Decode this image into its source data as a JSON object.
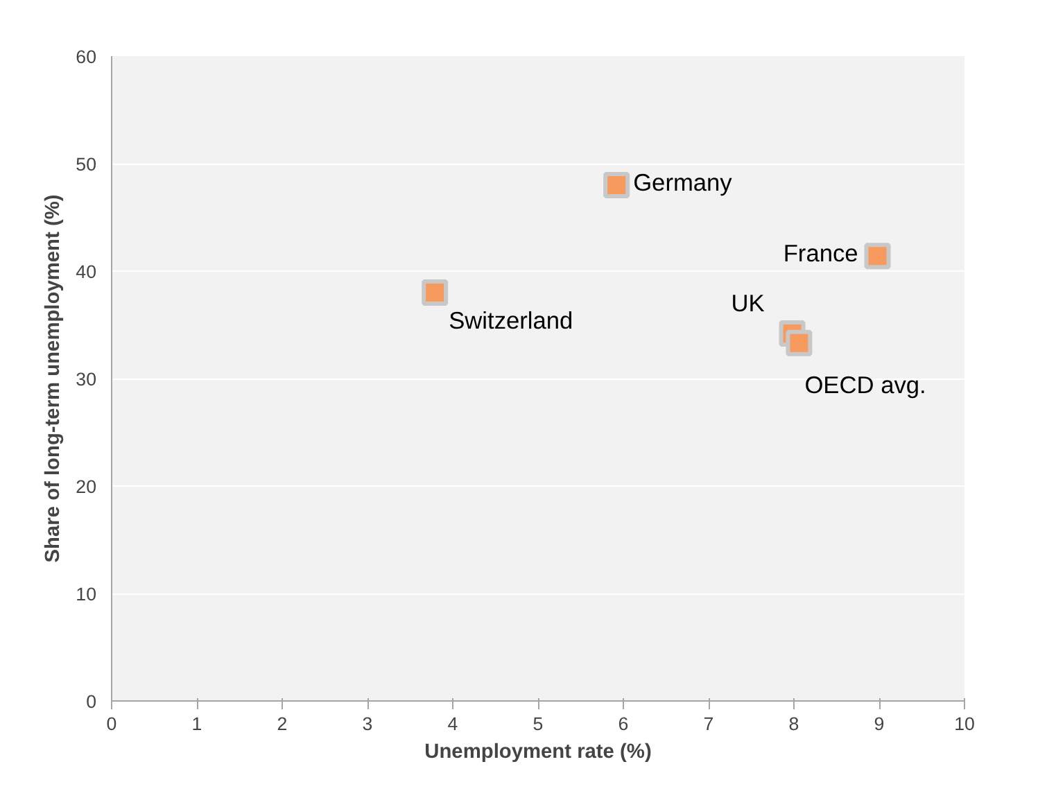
{
  "chart_data": {
    "type": "scatter",
    "xlabel": "Unemployment rate (%)",
    "ylabel": "Share of long-term unemployment (%)",
    "x": [
      3.79,
      5.92,
      8.98,
      7.98,
      8.06
    ],
    "values": [
      38.0,
      48.0,
      41.4,
      34.2,
      33.3
    ],
    "color": "#f79a5e",
    "marker": "square",
    "xlim": [
      0,
      10
    ],
    "xticks": [
      0,
      1,
      2,
      3,
      4,
      5,
      6,
      7,
      8,
      9,
      10
    ],
    "ylim": [
      0,
      60
    ],
    "yticks": [
      0,
      10,
      20,
      30,
      40,
      50,
      60
    ],
    "grid": "y",
    "annotations": [
      {
        "text": "Switzerland",
        "x": 3.79,
        "y": 38.0
      },
      {
        "text": "Germany",
        "x": 5.92,
        "y": 48.0
      },
      {
        "text": "France",
        "x": 8.98,
        "y": 41.4
      },
      {
        "text": "UK",
        "x": 7.98,
        "y": 34.2
      },
      {
        "text": "OECD avg.",
        "x": 8.06,
        "y": 33.3
      }
    ]
  }
}
